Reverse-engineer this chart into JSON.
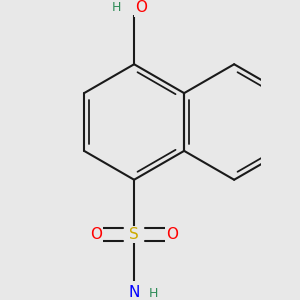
{
  "bg_color": "#e8e8e8",
  "bond_color": "#1a1a1a",
  "bond_width": 1.5,
  "atom_colors": {
    "O": "#ff0000",
    "S": "#ccaa00",
    "N": "#0000ff",
    "H": "#2e8b57",
    "C": "#1a1a1a"
  },
  "font_size_atoms": 11,
  "font_size_h": 9,
  "figsize": [
    3.0,
    3.0
  ],
  "dpi": 100
}
